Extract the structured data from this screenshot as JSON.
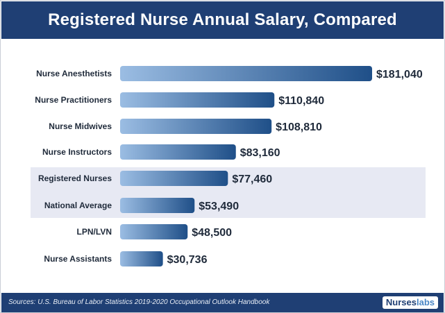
{
  "chart_data": {
    "type": "bar",
    "orientation": "horizontal",
    "title": "Registered Nurse Annual Salary, Compared",
    "categories": [
      "Nurse Anesthetists",
      "Nurse Practitioners",
      "Nurse Midwives",
      "Nurse Instructors",
      "Registered Nurses",
      "National Average",
      "LPN/LVN",
      "Nurse Assistants"
    ],
    "values": [
      181040,
      110840,
      108810,
      83160,
      77460,
      53490,
      48500,
      30736
    ],
    "value_labels": [
      "$181,040",
      "$110,840",
      "$108,810",
      "$83,160",
      "$77,460",
      "$53,490",
      "$48,500",
      "$30,736"
    ],
    "highlighted_categories": [
      "Registered Nurses",
      "National Average"
    ],
    "bar_color_start": "#9bbde3",
    "bar_color_end": "#1f4f88",
    "highlight_color": "#e7e9f3",
    "grid": false,
    "legend": "none"
  },
  "footer": {
    "source": "Sources: U.S. Bureau of Labor Statistics 2019-2020 Occupational Outlook Handbook",
    "logo_part1": "Nurses",
    "logo_part2": "labs"
  },
  "colors": {
    "title_bar": "#1f3f74",
    "footer_bar": "#1f3f74",
    "text": "#1f2a3a"
  }
}
